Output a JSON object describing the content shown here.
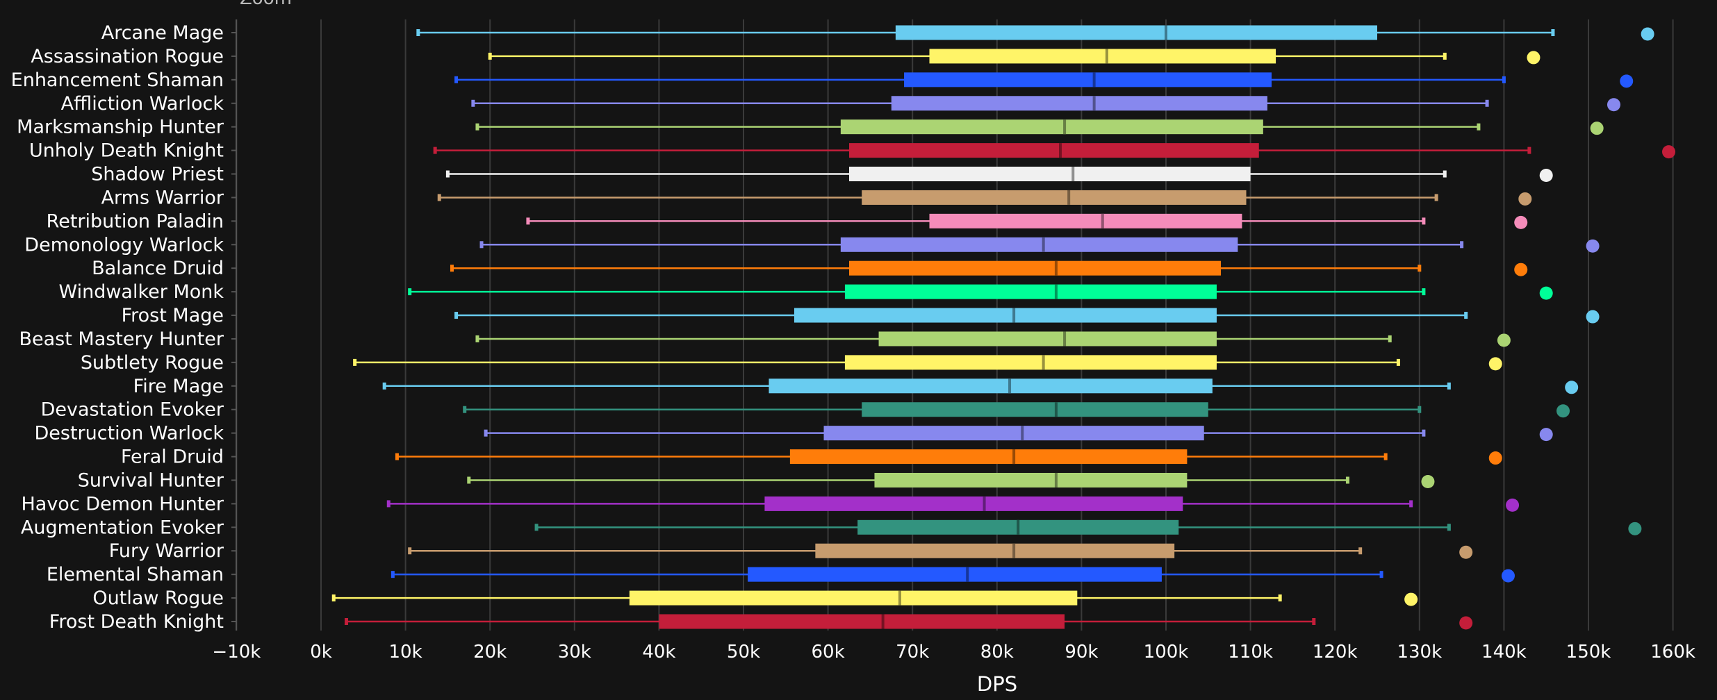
{
  "zoom_label": "Zoom",
  "chart_data": {
    "type": "box",
    "orientation": "horizontal",
    "title": "",
    "xlabel": "DPS",
    "ylabel": "",
    "xlim": [
      -10000,
      160000
    ],
    "x_ticks": [
      -10000,
      0,
      10000,
      20000,
      30000,
      40000,
      50000,
      60000,
      70000,
      80000,
      90000,
      100000,
      110000,
      120000,
      130000,
      140000,
      150000,
      160000
    ],
    "x_tick_labels": [
      "−10k",
      "0k",
      "10k",
      "20k",
      "30k",
      "40k",
      "50k",
      "60k",
      "70k",
      "80k",
      "90k",
      "100k",
      "110k",
      "120k",
      "130k",
      "140k",
      "150k",
      "160k"
    ],
    "grid": "vertical",
    "legend": "none",
    "fields": [
      "min",
      "q1",
      "median",
      "q3",
      "max",
      "outlier"
    ],
    "series": [
      {
        "name": "Arcane Mage",
        "color": "#69ccf0",
        "min": 11500,
        "q1": 68000,
        "median": 100000,
        "q3": 125000,
        "max": 145800,
        "outlier": 157000
      },
      {
        "name": "Assassination Rogue",
        "color": "#fff468",
        "min": 20000,
        "q1": 72000,
        "median": 93000,
        "q3": 113000,
        "max": 133000,
        "outlier": 143500
      },
      {
        "name": "Enhancement Shaman",
        "color": "#2459ff",
        "min": 16000,
        "q1": 69000,
        "median": 91500,
        "q3": 112500,
        "max": 140000,
        "outlier": 154500
      },
      {
        "name": "Affliction Warlock",
        "color": "#8788ee",
        "min": 18000,
        "q1": 67500,
        "median": 91500,
        "q3": 112000,
        "max": 138000,
        "outlier": 153000
      },
      {
        "name": "Marksmanship Hunter",
        "color": "#abd473",
        "min": 18500,
        "q1": 61500,
        "median": 88000,
        "q3": 111500,
        "max": 137000,
        "outlier": 151000
      },
      {
        "name": "Unholy Death Knight",
        "color": "#c41e3a",
        "min": 13500,
        "q1": 62500,
        "median": 87500,
        "q3": 111000,
        "max": 143000,
        "outlier": 159500
      },
      {
        "name": "Shadow Priest",
        "color": "#f0f0f0",
        "min": 15000,
        "q1": 62500,
        "median": 89000,
        "q3": 110000,
        "max": 133000,
        "outlier": 145000
      },
      {
        "name": "Arms Warrior",
        "color": "#c79c6e",
        "min": 14000,
        "q1": 64000,
        "median": 88500,
        "q3": 109500,
        "max": 132000,
        "outlier": 142500
      },
      {
        "name": "Retribution Paladin",
        "color": "#f58cba",
        "min": 24500,
        "q1": 72000,
        "median": 92500,
        "q3": 109000,
        "max": 130500,
        "outlier": 142000
      },
      {
        "name": "Demonology Warlock",
        "color": "#8788ee",
        "min": 19000,
        "q1": 61500,
        "median": 85500,
        "q3": 108500,
        "max": 135000,
        "outlier": 150500
      },
      {
        "name": "Balance Druid",
        "color": "#ff7d0a",
        "min": 15500,
        "q1": 62500,
        "median": 87000,
        "q3": 106500,
        "max": 130000,
        "outlier": 142000
      },
      {
        "name": "Windwalker Monk",
        "color": "#00ff98",
        "min": 10500,
        "q1": 62000,
        "median": 87000,
        "q3": 106000,
        "max": 130500,
        "outlier": 145000
      },
      {
        "name": "Frost Mage",
        "color": "#69ccf0",
        "min": 16000,
        "q1": 56000,
        "median": 82000,
        "q3": 106000,
        "max": 135500,
        "outlier": 150500
      },
      {
        "name": "Beast Mastery Hunter",
        "color": "#abd473",
        "min": 18500,
        "q1": 66000,
        "median": 88000,
        "q3": 106000,
        "max": 126500,
        "outlier": 140000
      },
      {
        "name": "Subtlety Rogue",
        "color": "#fff468",
        "min": 4000,
        "q1": 62000,
        "median": 85500,
        "q3": 106000,
        "max": 127500,
        "outlier": 139000
      },
      {
        "name": "Fire Mage",
        "color": "#69ccf0",
        "min": 7500,
        "q1": 53000,
        "median": 81500,
        "q3": 105500,
        "max": 133500,
        "outlier": 148000
      },
      {
        "name": "Devastation Evoker",
        "color": "#33937f",
        "min": 17000,
        "q1": 64000,
        "median": 87000,
        "q3": 105000,
        "max": 130000,
        "outlier": 147000
      },
      {
        "name": "Destruction Warlock",
        "color": "#8788ee",
        "min": 19500,
        "q1": 59500,
        "median": 83000,
        "q3": 104500,
        "max": 130500,
        "outlier": 145000
      },
      {
        "name": "Feral Druid",
        "color": "#ff7d0a",
        "min": 9000,
        "q1": 55500,
        "median": 82000,
        "q3": 102500,
        "max": 126000,
        "outlier": 139000
      },
      {
        "name": "Survival Hunter",
        "color": "#abd473",
        "min": 17500,
        "q1": 65500,
        "median": 87000,
        "q3": 102500,
        "max": 121500,
        "outlier": 131000
      },
      {
        "name": "Havoc Demon Hunter",
        "color": "#a330c9",
        "min": 8000,
        "q1": 52500,
        "median": 78500,
        "q3": 102000,
        "max": 129000,
        "outlier": 141000
      },
      {
        "name": "Augmentation Evoker",
        "color": "#33937f",
        "min": 25500,
        "q1": 63500,
        "median": 82500,
        "q3": 101500,
        "max": 133500,
        "outlier": 155500
      },
      {
        "name": "Fury Warrior",
        "color": "#c79c6e",
        "min": 10500,
        "q1": 58500,
        "median": 82000,
        "q3": 101000,
        "max": 123000,
        "outlier": 135500
      },
      {
        "name": "Elemental Shaman",
        "color": "#2459ff",
        "min": 8500,
        "q1": 50500,
        "median": 76500,
        "q3": 99500,
        "max": 125500,
        "outlier": 140500
      },
      {
        "name": "Outlaw Rogue",
        "color": "#fff468",
        "min": 1500,
        "q1": 36500,
        "median": 68500,
        "q3": 89500,
        "max": 113500,
        "outlier": 129000
      },
      {
        "name": "Frost Death Knight",
        "color": "#c41e3a",
        "min": 3000,
        "q1": 40000,
        "median": 66500,
        "q3": 88000,
        "max": 117500,
        "outlier": 135500
      }
    ]
  }
}
